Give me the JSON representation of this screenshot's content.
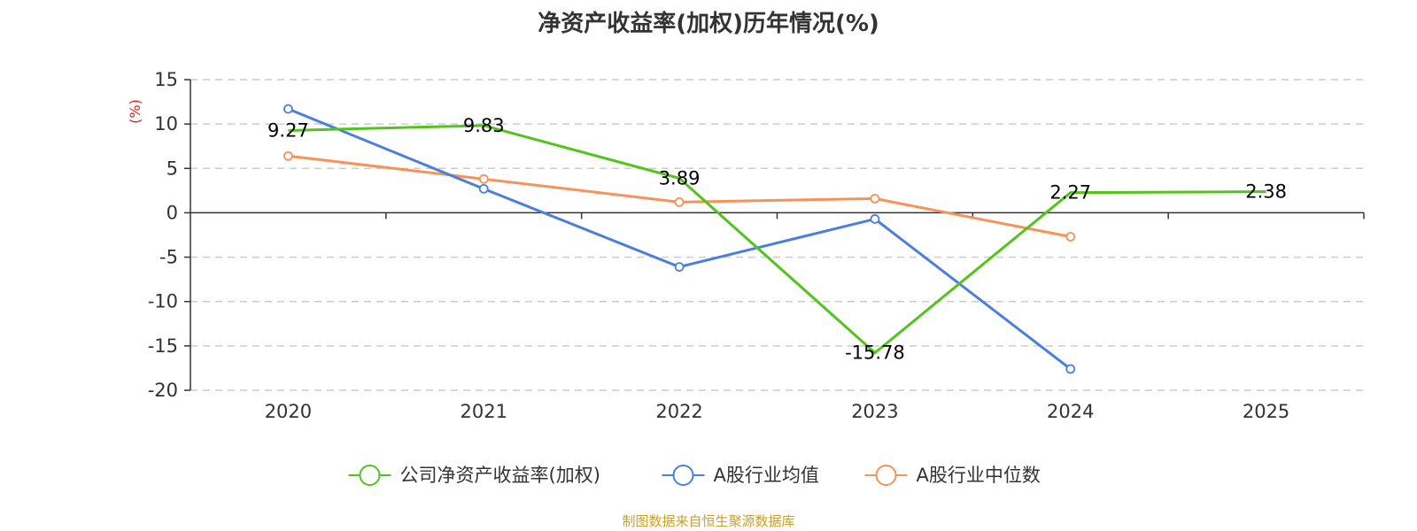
{
  "chart_data": {
    "type": "line",
    "title": "净资产收益率(加权)历年情况(%)",
    "ylabel": "(%)",
    "ylim": [
      -20,
      15
    ],
    "yticks": [
      15,
      10,
      5,
      0,
      -5,
      -10,
      -15,
      -20
    ],
    "categories": [
      "2020",
      "2021",
      "2022",
      "2023",
      "2024",
      "2025"
    ],
    "grid": true,
    "legend_position": "bottom",
    "series": [
      {
        "name": "公司净资产收益率(加权)",
        "color": "#52c41a",
        "values": [
          9.27,
          9.83,
          3.89,
          -15.78,
          2.27,
          2.38
        ],
        "labels": [
          "9.27",
          "9.83",
          "3.89",
          "-15.78",
          "2.27",
          "2.38"
        ]
      },
      {
        "name": "A股行业均值",
        "color": "#4a7fdc",
        "values": [
          11.7,
          2.7,
          -6.1,
          -0.7,
          -17.6,
          null
        ]
      },
      {
        "name": "A股行业中位数",
        "color": "#f79259",
        "values": [
          6.4,
          3.8,
          1.2,
          1.6,
          -2.7,
          null
        ]
      }
    ]
  },
  "source_note": "制图数据来自恒生聚源数据库",
  "colors": {
    "ylabel": "#e02020",
    "axis": "#333333",
    "grid": "#cccccc"
  }
}
